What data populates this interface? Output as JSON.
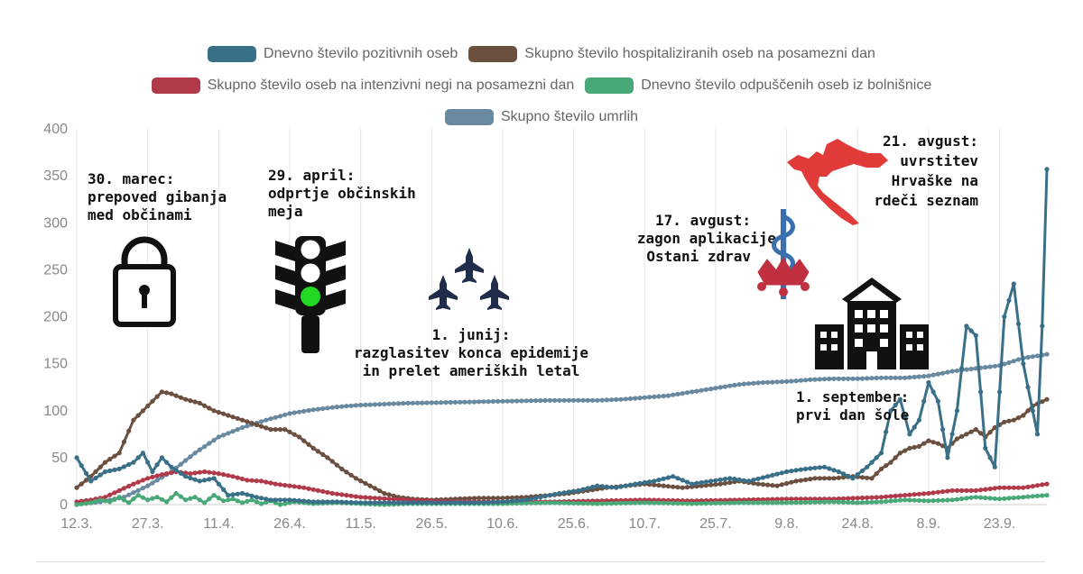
{
  "chart_data": {
    "type": "line",
    "xlabel": "",
    "ylabel": "",
    "ylim": [
      0,
      400
    ],
    "yticks": [
      "0",
      "50",
      "100",
      "150",
      "200",
      "250",
      "300",
      "350",
      "400"
    ],
    "x_tick_labels": [
      "12.3.",
      "27.3.",
      "11.4.",
      "26.4.",
      "11.5.",
      "26.5.",
      "10.6.",
      "25.6.",
      "10.7.",
      "25.7.",
      "9.8.",
      "24.8.",
      "8.9.",
      "23.9."
    ],
    "grid": "vertical",
    "legend": {
      "placement": "top",
      "rows": [
        [
          "Dnevno število pozitivnih oseb",
          "Skupno število hospitaliziranih oseb na posamezni dan"
        ],
        [
          "Skupno število oseb na intenzivni negi na posamezni dan",
          "Dnevno število odpuščenih oseb iz bolnišnice"
        ],
        [
          "Skupno število umrlih"
        ]
      ]
    },
    "series": [
      {
        "name": "Dnevno število pozitivnih oseb",
        "color": "#3a6f88",
        "points": [
          [
            0,
            50
          ],
          [
            3,
            25
          ],
          [
            6,
            35
          ],
          [
            9,
            38
          ],
          [
            12,
            45
          ],
          [
            14,
            55
          ],
          [
            16,
            35
          ],
          [
            18,
            50
          ],
          [
            20,
            40
          ],
          [
            23,
            30
          ],
          [
            26,
            25
          ],
          [
            29,
            28
          ],
          [
            32,
            10
          ],
          [
            35,
            12
          ],
          [
            38,
            8
          ],
          [
            41,
            5
          ],
          [
            45,
            5
          ],
          [
            50,
            3
          ],
          [
            55,
            3
          ],
          [
            60,
            2
          ],
          [
            65,
            2
          ],
          [
            70,
            2
          ],
          [
            75,
            2
          ],
          [
            80,
            2
          ],
          [
            85,
            2
          ],
          [
            90,
            3
          ],
          [
            95,
            5
          ],
          [
            98,
            8
          ],
          [
            102,
            12
          ],
          [
            106,
            15
          ],
          [
            110,
            20
          ],
          [
            114,
            18
          ],
          [
            118,
            22
          ],
          [
            122,
            25
          ],
          [
            126,
            30
          ],
          [
            130,
            22
          ],
          [
            134,
            25
          ],
          [
            138,
            28
          ],
          [
            142,
            25
          ],
          [
            146,
            30
          ],
          [
            150,
            35
          ],
          [
            154,
            38
          ],
          [
            158,
            40
          ],
          [
            161,
            35
          ],
          [
            164,
            28
          ],
          [
            167,
            40
          ],
          [
            170,
            55
          ],
          [
            172,
            100
          ],
          [
            174,
            112
          ],
          [
            176,
            75
          ],
          [
            178,
            90
          ],
          [
            180,
            130
          ],
          [
            182,
            110
          ],
          [
            184,
            50
          ],
          [
            186,
            100
          ],
          [
            188,
            190
          ],
          [
            190,
            180
          ],
          [
            192,
            60
          ],
          [
            194,
            40
          ],
          [
            196,
            200
          ],
          [
            198,
            235
          ],
          [
            200,
            150
          ],
          [
            202,
            100
          ],
          [
            203,
            75
          ],
          [
            204,
            190
          ],
          [
            205,
            357
          ]
        ]
      },
      {
        "name": "Skupno število hospitaliziranih oseb na posamezni dan",
        "color": "#6b4f3f",
        "points": [
          [
            0,
            18
          ],
          [
            3,
            30
          ],
          [
            6,
            45
          ],
          [
            9,
            55
          ],
          [
            12,
            90
          ],
          [
            14,
            100
          ],
          [
            16,
            110
          ],
          [
            18,
            120
          ],
          [
            20,
            118
          ],
          [
            23,
            112
          ],
          [
            26,
            108
          ],
          [
            29,
            100
          ],
          [
            32,
            95
          ],
          [
            35,
            90
          ],
          [
            38,
            85
          ],
          [
            41,
            80
          ],
          [
            44,
            80
          ],
          [
            47,
            72
          ],
          [
            50,
            60
          ],
          [
            53,
            50
          ],
          [
            56,
            38
          ],
          [
            59,
            28
          ],
          [
            62,
            20
          ],
          [
            65,
            12
          ],
          [
            68,
            8
          ],
          [
            71,
            6
          ],
          [
            75,
            5
          ],
          [
            80,
            6
          ],
          [
            85,
            7
          ],
          [
            90,
            7
          ],
          [
            95,
            8
          ],
          [
            100,
            10
          ],
          [
            104,
            12
          ],
          [
            108,
            15
          ],
          [
            112,
            18
          ],
          [
            116,
            20
          ],
          [
            120,
            22
          ],
          [
            124,
            20
          ],
          [
            128,
            18
          ],
          [
            132,
            20
          ],
          [
            136,
            22
          ],
          [
            140,
            25
          ],
          [
            144,
            22
          ],
          [
            148,
            20
          ],
          [
            152,
            25
          ],
          [
            156,
            28
          ],
          [
            160,
            28
          ],
          [
            164,
            30
          ],
          [
            168,
            28
          ],
          [
            170,
            38
          ],
          [
            172,
            45
          ],
          [
            174,
            55
          ],
          [
            176,
            60
          ],
          [
            178,
            62
          ],
          [
            180,
            68
          ],
          [
            182,
            65
          ],
          [
            184,
            60
          ],
          [
            186,
            70
          ],
          [
            188,
            75
          ],
          [
            190,
            80
          ],
          [
            192,
            72
          ],
          [
            194,
            82
          ],
          [
            196,
            88
          ],
          [
            198,
            90
          ],
          [
            200,
            95
          ],
          [
            202,
            105
          ],
          [
            205,
            112
          ]
        ]
      },
      {
        "name": "Skupno število oseb na intenzivni negi na posamezni dan",
        "color": "#b03a4a",
        "points": [
          [
            0,
            3
          ],
          [
            3,
            5
          ],
          [
            6,
            8
          ],
          [
            9,
            15
          ],
          [
            12,
            22
          ],
          [
            15,
            28
          ],
          [
            18,
            32
          ],
          [
            21,
            35
          ],
          [
            24,
            33
          ],
          [
            27,
            35
          ],
          [
            30,
            33
          ],
          [
            33,
            30
          ],
          [
            36,
            26
          ],
          [
            39,
            25
          ],
          [
            42,
            22
          ],
          [
            45,
            20
          ],
          [
            48,
            18
          ],
          [
            51,
            15
          ],
          [
            54,
            12
          ],
          [
            57,
            10
          ],
          [
            60,
            8
          ],
          [
            63,
            7
          ],
          [
            66,
            6
          ],
          [
            70,
            5
          ],
          [
            75,
            4
          ],
          [
            80,
            3
          ],
          [
            90,
            3
          ],
          [
            100,
            3
          ],
          [
            110,
            4
          ],
          [
            120,
            5
          ],
          [
            130,
            4
          ],
          [
            140,
            5
          ],
          [
            150,
            6
          ],
          [
            160,
            6
          ],
          [
            170,
            8
          ],
          [
            175,
            10
          ],
          [
            180,
            12
          ],
          [
            185,
            15
          ],
          [
            190,
            15
          ],
          [
            195,
            18
          ],
          [
            200,
            18
          ],
          [
            205,
            22
          ]
        ]
      },
      {
        "name": "Dnevno število odpuščenih oseb iz bolnišnice",
        "color": "#48a878",
        "points": [
          [
            0,
            0
          ],
          [
            3,
            2
          ],
          [
            5,
            5
          ],
          [
            7,
            3
          ],
          [
            9,
            8
          ],
          [
            11,
            2
          ],
          [
            13,
            10
          ],
          [
            15,
            5
          ],
          [
            17,
            8
          ],
          [
            19,
            3
          ],
          [
            21,
            12
          ],
          [
            23,
            5
          ],
          [
            25,
            8
          ],
          [
            27,
            2
          ],
          [
            29,
            10
          ],
          [
            31,
            4
          ],
          [
            33,
            6
          ],
          [
            35,
            2
          ],
          [
            37,
            5
          ],
          [
            39,
            1
          ],
          [
            41,
            4
          ],
          [
            43,
            0
          ],
          [
            46,
            3
          ],
          [
            50,
            1
          ],
          [
            55,
            2
          ],
          [
            60,
            1
          ],
          [
            65,
            0
          ],
          [
            70,
            1
          ],
          [
            80,
            1
          ],
          [
            90,
            1
          ],
          [
            100,
            2
          ],
          [
            110,
            1
          ],
          [
            120,
            2
          ],
          [
            130,
            1
          ],
          [
            140,
            2
          ],
          [
            150,
            2
          ],
          [
            160,
            3
          ],
          [
            165,
            2
          ],
          [
            170,
            3
          ],
          [
            175,
            5
          ],
          [
            180,
            4
          ],
          [
            185,
            5
          ],
          [
            190,
            8
          ],
          [
            195,
            6
          ],
          [
            200,
            8
          ],
          [
            205,
            10
          ]
        ]
      },
      {
        "name": "Skupno število umrlih",
        "color": "#6889a0",
        "points": [
          [
            0,
            0
          ],
          [
            5,
            3
          ],
          [
            10,
            8
          ],
          [
            15,
            20
          ],
          [
            20,
            35
          ],
          [
            25,
            55
          ],
          [
            30,
            72
          ],
          [
            35,
            82
          ],
          [
            40,
            90
          ],
          [
            45,
            97
          ],
          [
            50,
            101
          ],
          [
            55,
            104
          ],
          [
            60,
            106
          ],
          [
            65,
            107
          ],
          [
            70,
            108
          ],
          [
            80,
            109
          ],
          [
            90,
            110
          ],
          [
            100,
            111
          ],
          [
            110,
            111
          ],
          [
            115,
            112
          ],
          [
            120,
            114
          ],
          [
            125,
            116
          ],
          [
            130,
            120
          ],
          [
            135,
            124
          ],
          [
            140,
            128
          ],
          [
            145,
            130
          ],
          [
            150,
            131
          ],
          [
            155,
            133
          ],
          [
            160,
            134
          ],
          [
            165,
            134
          ],
          [
            170,
            135
          ],
          [
            175,
            135
          ],
          [
            180,
            137
          ],
          [
            185,
            142
          ],
          [
            190,
            145
          ],
          [
            195,
            148
          ],
          [
            200,
            156
          ],
          [
            205,
            160
          ]
        ]
      }
    ]
  },
  "annotations": [
    {
      "lines": [
        "30. marec:",
        "prepoved gibanja",
        "med občinami"
      ]
    },
    {
      "lines": [
        "29. april:",
        "odprtje občinskih",
        "meja"
      ]
    },
    {
      "lines": [
        "1. junij:",
        "razglasitev konca epidemije",
        "in prelet ameriških letal"
      ]
    },
    {
      "lines": [
        "17. avgust:",
        "zagon aplikacije",
        "Ostani zdrav"
      ]
    },
    {
      "lines": [
        "21. avgust:",
        "uvrstitev",
        "Hrvaške na",
        "rdeči seznam"
      ]
    },
    {
      "lines": [
        "1. september:",
        "prvi dan šole"
      ]
    }
  ],
  "icons": [
    "padlock-icon",
    "traffic-light-icon",
    "jets-icon",
    "medical-snake-icon",
    "croatia-map-icon",
    "school-building-icon"
  ],
  "colors": {
    "green_light": "#22d822",
    "map_red": "#e03b38",
    "icon_navy": "#1f2d4a",
    "snake_blue": "#3a6fb0"
  }
}
